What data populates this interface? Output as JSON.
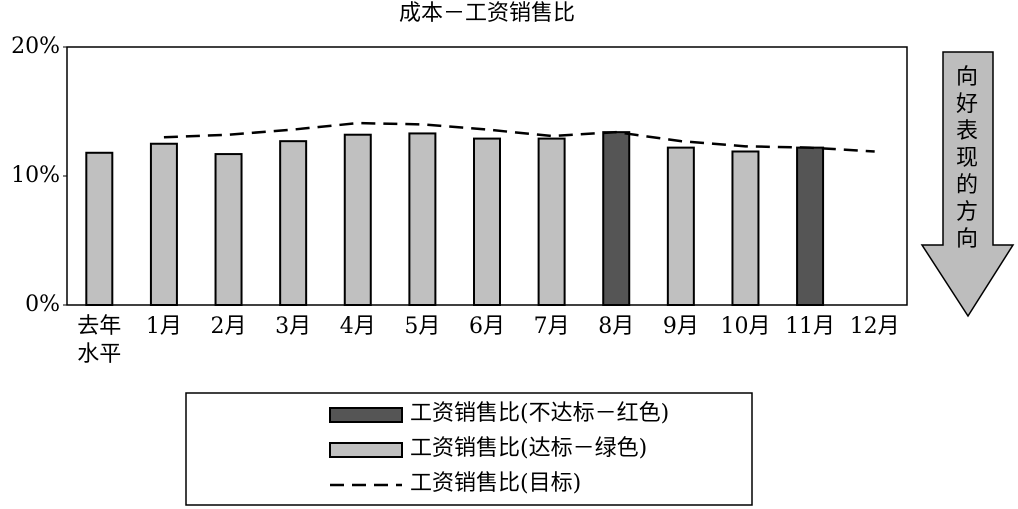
{
  "chart_data": {
    "type": "bar",
    "title": "成本－工资销售比",
    "categories": [
      "去年水平",
      "1月",
      "2月",
      "3月",
      "4月",
      "5月",
      "6月",
      "7月",
      "8月",
      "9月",
      "10月",
      "11月",
      "12月"
    ],
    "series": [
      {
        "name": "工资销售比(不达标－红色)",
        "type": "bar",
        "color": "#555555",
        "values": [
          null,
          null,
          null,
          null,
          null,
          null,
          null,
          null,
          13.4,
          null,
          null,
          12.2,
          null
        ]
      },
      {
        "name": "工资销售比(达标－绿色)",
        "type": "bar",
        "color": "#c0c0c0",
        "values": [
          11.8,
          12.5,
          11.7,
          12.7,
          13.2,
          13.3,
          12.9,
          12.9,
          null,
          12.2,
          11.9,
          null,
          null
        ]
      },
      {
        "name": "工资销售比(目标)",
        "type": "line",
        "color": "#000000",
        "values": [
          null,
          13.0,
          13.2,
          13.6,
          14.1,
          14.0,
          13.6,
          13.1,
          13.4,
          12.7,
          12.3,
          12.2,
          11.9
        ]
      }
    ],
    "ylim": [
      0,
      20
    ],
    "yticks": [
      {
        "value": 0,
        "label": "0%"
      },
      {
        "value": 10,
        "label": "10%"
      },
      {
        "value": 20,
        "label": "20%"
      }
    ],
    "annotation": "向好表现的方向"
  }
}
